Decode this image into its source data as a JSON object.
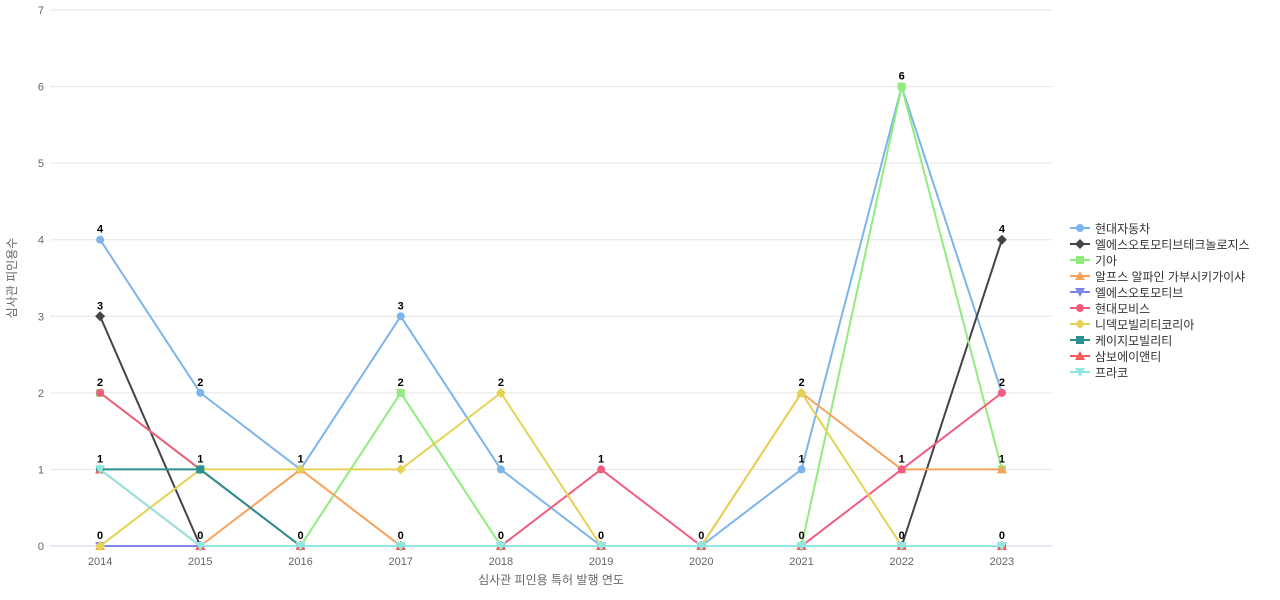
{
  "chart_data": {
    "type": "line",
    "title": "",
    "xlabel": "심사관 피인용 특허 발행 연도",
    "ylabel": "심사관 피인용수",
    "x_categories": [
      "2014",
      "2015",
      "2016",
      "2017",
      "2018",
      "2019",
      "2020",
      "2021",
      "2022",
      "2023"
    ],
    "ylim": [
      0,
      7
    ],
    "y_ticks": [
      0,
      1,
      2,
      3,
      4,
      5,
      6,
      7
    ],
    "grid": true,
    "legend_position": "right",
    "colors": {
      "grid": "#e6e6e6",
      "axis_line": "#ccd6eb",
      "tick_text": "#666666",
      "legend_text": "#333333",
      "data_label": "#000000",
      "background": "#ffffff"
    },
    "series": [
      {
        "name": "현대자동차",
        "color": "#7cb5ec",
        "marker": "circle",
        "values": [
          4,
          2,
          1,
          3,
          1,
          0,
          0,
          1,
          6,
          2
        ]
      },
      {
        "name": "엘에스오토모티브테크놀로지스",
        "color": "#434348",
        "marker": "diamond",
        "values": [
          3,
          0,
          0,
          0,
          0,
          0,
          0,
          0,
          0,
          4
        ]
      },
      {
        "name": "기아",
        "color": "#90ed7d",
        "marker": "square",
        "values": [
          2,
          1,
          0,
          2,
          0,
          0,
          0,
          0,
          6,
          1
        ]
      },
      {
        "name": "알프스 알파인 가부시키가이샤",
        "color": "#f7a35c",
        "marker": "triangle",
        "values": [
          0,
          0,
          1,
          0,
          0,
          0,
          0,
          2,
          1,
          1
        ]
      },
      {
        "name": "엘에스오토모티브",
        "color": "#8085e9",
        "marker": "triangle-down",
        "values": [
          0,
          0,
          0,
          0,
          0,
          0,
          0,
          0,
          0,
          0
        ]
      },
      {
        "name": "현대모비스",
        "color": "#f15c80",
        "marker": "circle",
        "values": [
          2,
          1,
          0,
          0,
          0,
          1,
          0,
          0,
          1,
          2
        ]
      },
      {
        "name": "니덱모빌리티코리아",
        "color": "#e4d354",
        "marker": "diamond",
        "values": [
          0,
          1,
          1,
          1,
          2,
          0,
          0,
          2,
          0,
          0
        ]
      },
      {
        "name": "케이지모빌리티",
        "color": "#2b908f",
        "marker": "square",
        "values": [
          1,
          1,
          0,
          0,
          0,
          0,
          0,
          0,
          0,
          0
        ]
      },
      {
        "name": "삼보에이앤티",
        "color": "#f45b5b",
        "marker": "triangle",
        "values": [
          1,
          0,
          0,
          0,
          0,
          0,
          0,
          0,
          0,
          0
        ]
      },
      {
        "name": "프라코",
        "color": "#91e8e1",
        "marker": "triangle-down",
        "values": [
          1,
          0,
          0,
          0,
          0,
          0,
          0,
          0,
          0,
          0
        ]
      }
    ]
  }
}
